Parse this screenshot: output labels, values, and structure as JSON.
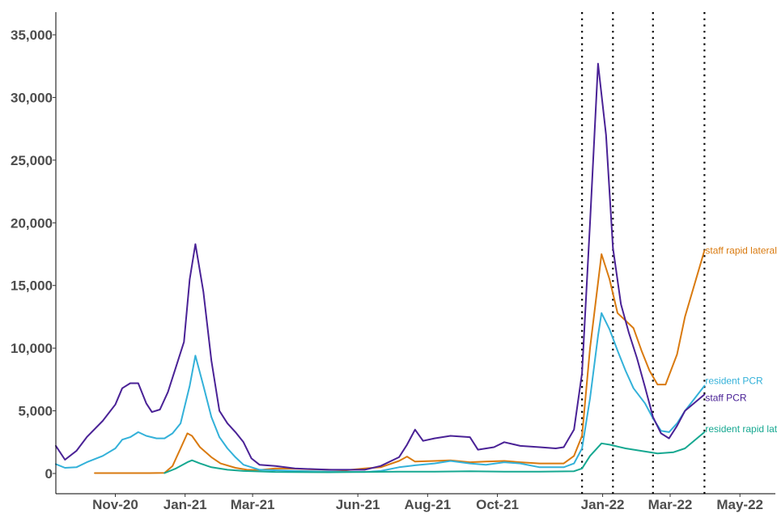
{
  "chart_data": {
    "type": "line",
    "title": "",
    "xlabel": "",
    "ylabel": "",
    "ylim": [
      0,
      35000
    ],
    "y_ticks": [
      0,
      5000,
      10000,
      15000,
      20000,
      25000,
      30000,
      35000
    ],
    "y_tick_labels": [
      "0",
      "5,000",
      "10,000",
      "15,000",
      "20,000",
      "25,000",
      "30,000",
      "35,000"
    ],
    "x_ticks": [
      "2020-11-01",
      "2021-01-01",
      "2021-03-01",
      "2021-06-01",
      "2021-08-01",
      "2021-10-01",
      "2022-01-01",
      "2022-03-01",
      "2022-05-01"
    ],
    "x_tick_labels": [
      "Nov-20",
      "Jan-21",
      "Mar-21",
      "Jun-21",
      "Aug-21",
      "Oct-21",
      "Jan-22",
      "Mar-22",
      "May-22"
    ],
    "xlim": [
      "2020-09-10",
      "2022-06-01"
    ],
    "grid": false,
    "legend": "direct labels at line ends",
    "vertical_reference_lines": [
      "2021-12-14",
      "2022-01-10",
      "2022-02-14",
      "2022-03-31"
    ],
    "series": [
      {
        "name": "staff rapid lateral flow",
        "color": "#d97a0f",
        "points": [
          [
            "2020-10-14",
            30
          ],
          [
            "2020-11-01",
            30
          ],
          [
            "2020-12-01",
            30
          ],
          [
            "2020-12-14",
            50
          ],
          [
            "2020-12-21",
            600
          ],
          [
            "2020-12-28",
            2000
          ],
          [
            "2021-01-03",
            3200
          ],
          [
            "2021-01-07",
            3000
          ],
          [
            "2021-01-14",
            2100
          ],
          [
            "2021-01-24",
            1300
          ],
          [
            "2021-02-01",
            800
          ],
          [
            "2021-02-14",
            450
          ],
          [
            "2021-02-24",
            300
          ],
          [
            "2021-03-07",
            280
          ],
          [
            "2021-03-21",
            400
          ],
          [
            "2021-04-07",
            380
          ],
          [
            "2021-04-21",
            330
          ],
          [
            "2021-05-07",
            300
          ],
          [
            "2021-05-21",
            250
          ],
          [
            "2021-06-07",
            400
          ],
          [
            "2021-06-21",
            500
          ],
          [
            "2021-07-07",
            1000
          ],
          [
            "2021-07-14",
            1350
          ],
          [
            "2021-07-21",
            950
          ],
          [
            "2021-08-07",
            1000
          ],
          [
            "2021-08-21",
            1050
          ],
          [
            "2021-09-07",
            900
          ],
          [
            "2021-09-21",
            950
          ],
          [
            "2021-10-07",
            1000
          ],
          [
            "2021-10-21",
            900
          ],
          [
            "2021-11-07",
            800
          ],
          [
            "2021-11-28",
            800
          ],
          [
            "2021-12-07",
            1400
          ],
          [
            "2021-12-14",
            3000
          ],
          [
            "2021-12-21",
            10000
          ],
          [
            "2021-12-31",
            17500
          ],
          [
            "2022-01-07",
            15500
          ],
          [
            "2022-01-14",
            12800
          ],
          [
            "2022-01-21",
            12200
          ],
          [
            "2022-01-28",
            11600
          ],
          [
            "2022-02-04",
            9800
          ],
          [
            "2022-02-11",
            8200
          ],
          [
            "2022-02-18",
            7100
          ],
          [
            "2022-02-25",
            7100
          ],
          [
            "2022-03-07",
            9500
          ],
          [
            "2022-03-14",
            12500
          ],
          [
            "2022-03-31",
            17800
          ]
        ]
      },
      {
        "name": "resident PCR",
        "color": "#33b1d9",
        "points": [
          [
            "2020-09-10",
            750
          ],
          [
            "2020-09-18",
            450
          ],
          [
            "2020-09-28",
            500
          ],
          [
            "2020-10-07",
            900
          ],
          [
            "2020-10-21",
            1400
          ],
          [
            "2020-11-01",
            2000
          ],
          [
            "2020-11-07",
            2700
          ],
          [
            "2020-11-14",
            2900
          ],
          [
            "2020-11-21",
            3300
          ],
          [
            "2020-11-28",
            3000
          ],
          [
            "2020-12-07",
            2800
          ],
          [
            "2020-12-14",
            2800
          ],
          [
            "2020-12-21",
            3200
          ],
          [
            "2020-12-28",
            4000
          ],
          [
            "2021-01-05",
            7000
          ],
          [
            "2021-01-10",
            9400
          ],
          [
            "2021-01-17",
            7000
          ],
          [
            "2021-01-24",
            4500
          ],
          [
            "2021-01-31",
            2900
          ],
          [
            "2021-02-07",
            2000
          ],
          [
            "2021-02-14",
            1300
          ],
          [
            "2021-02-21",
            700
          ],
          [
            "2021-03-07",
            300
          ],
          [
            "2021-04-07",
            200
          ],
          [
            "2021-05-07",
            150
          ],
          [
            "2021-06-07",
            120
          ],
          [
            "2021-06-21",
            200
          ],
          [
            "2021-07-07",
            500
          ],
          [
            "2021-07-21",
            650
          ],
          [
            "2021-08-07",
            800
          ],
          [
            "2021-08-21",
            1000
          ],
          [
            "2021-09-07",
            800
          ],
          [
            "2021-09-21",
            700
          ],
          [
            "2021-10-07",
            900
          ],
          [
            "2021-10-21",
            800
          ],
          [
            "2021-11-07",
            500
          ],
          [
            "2021-11-28",
            500
          ],
          [
            "2021-12-07",
            800
          ],
          [
            "2021-12-14",
            2000
          ],
          [
            "2021-12-21",
            6000
          ],
          [
            "2021-12-28",
            11000
          ],
          [
            "2021-12-31",
            12800
          ],
          [
            "2022-01-07",
            11500
          ],
          [
            "2022-01-14",
            9800
          ],
          [
            "2022-01-21",
            8200
          ],
          [
            "2022-01-28",
            6800
          ],
          [
            "2022-02-07",
            5600
          ],
          [
            "2022-02-14",
            4400
          ],
          [
            "2022-02-21",
            3400
          ],
          [
            "2022-02-28",
            3300
          ],
          [
            "2022-03-07",
            4000
          ],
          [
            "2022-03-14",
            5000
          ],
          [
            "2022-03-31",
            7000
          ]
        ]
      },
      {
        "name": "staff PCR",
        "color": "#4a2296",
        "points": [
          [
            "2020-09-10",
            2200
          ],
          [
            "2020-09-18",
            1100
          ],
          [
            "2020-09-28",
            1800
          ],
          [
            "2020-10-07",
            2900
          ],
          [
            "2020-10-21",
            4200
          ],
          [
            "2020-11-01",
            5500
          ],
          [
            "2020-11-07",
            6800
          ],
          [
            "2020-11-14",
            7200
          ],
          [
            "2020-11-21",
            7200
          ],
          [
            "2020-11-28",
            5600
          ],
          [
            "2020-12-03",
            4900
          ],
          [
            "2020-12-10",
            5100
          ],
          [
            "2020-12-17",
            6500
          ],
          [
            "2020-12-24",
            8500
          ],
          [
            "2020-12-31",
            10500
          ],
          [
            "2021-01-05",
            15500
          ],
          [
            "2021-01-10",
            18300
          ],
          [
            "2021-01-17",
            14500
          ],
          [
            "2021-01-24",
            9000
          ],
          [
            "2021-01-31",
            5000
          ],
          [
            "2021-02-07",
            4000
          ],
          [
            "2021-02-14",
            3300
          ],
          [
            "2021-02-21",
            2500
          ],
          [
            "2021-02-28",
            1200
          ],
          [
            "2021-03-07",
            700
          ],
          [
            "2021-03-21",
            600
          ],
          [
            "2021-04-07",
            400
          ],
          [
            "2021-05-07",
            300
          ],
          [
            "2021-06-07",
            300
          ],
          [
            "2021-06-21",
            600
          ],
          [
            "2021-07-07",
            1300
          ],
          [
            "2021-07-14",
            2300
          ],
          [
            "2021-07-21",
            3500
          ],
          [
            "2021-07-28",
            2600
          ],
          [
            "2021-08-07",
            2800
          ],
          [
            "2021-08-21",
            3000
          ],
          [
            "2021-09-07",
            2900
          ],
          [
            "2021-09-14",
            1900
          ],
          [
            "2021-09-28",
            2100
          ],
          [
            "2021-10-07",
            2500
          ],
          [
            "2021-10-21",
            2200
          ],
          [
            "2021-11-07",
            2100
          ],
          [
            "2021-11-21",
            2000
          ],
          [
            "2021-11-28",
            2100
          ],
          [
            "2021-12-07",
            3500
          ],
          [
            "2021-12-14",
            8000
          ],
          [
            "2021-12-21",
            20000
          ],
          [
            "2021-12-28",
            32700
          ],
          [
            "2022-01-04",
            27000
          ],
          [
            "2022-01-10",
            18000
          ],
          [
            "2022-01-17",
            13500
          ],
          [
            "2022-01-24",
            11200
          ],
          [
            "2022-01-31",
            9200
          ],
          [
            "2022-02-07",
            6900
          ],
          [
            "2022-02-14",
            4500
          ],
          [
            "2022-02-21",
            3200
          ],
          [
            "2022-02-28",
            2800
          ],
          [
            "2022-03-07",
            3800
          ],
          [
            "2022-03-14",
            5000
          ],
          [
            "2022-03-31",
            6300
          ]
        ]
      },
      {
        "name": "resident rapid lateral flow",
        "color": "#16a891",
        "points": [
          [
            "2020-12-14",
            30
          ],
          [
            "2020-12-24",
            400
          ],
          [
            "2021-01-03",
            900
          ],
          [
            "2021-01-07",
            1050
          ],
          [
            "2021-01-14",
            800
          ],
          [
            "2021-01-24",
            500
          ],
          [
            "2021-02-07",
            300
          ],
          [
            "2021-02-21",
            200
          ],
          [
            "2021-03-21",
            120
          ],
          [
            "2021-05-07",
            100
          ],
          [
            "2021-07-07",
            150
          ],
          [
            "2021-08-07",
            150
          ],
          [
            "2021-09-07",
            180
          ],
          [
            "2021-10-07",
            150
          ],
          [
            "2021-11-07",
            150
          ],
          [
            "2021-12-07",
            180
          ],
          [
            "2021-12-14",
            400
          ],
          [
            "2021-12-21",
            1400
          ],
          [
            "2021-12-31",
            2400
          ],
          [
            "2022-01-07",
            2300
          ],
          [
            "2022-01-21",
            2000
          ],
          [
            "2022-02-04",
            1800
          ],
          [
            "2022-02-18",
            1600
          ],
          [
            "2022-03-04",
            1700
          ],
          [
            "2022-03-14",
            2000
          ],
          [
            "2022-03-31",
            3300
          ]
        ]
      }
    ]
  }
}
